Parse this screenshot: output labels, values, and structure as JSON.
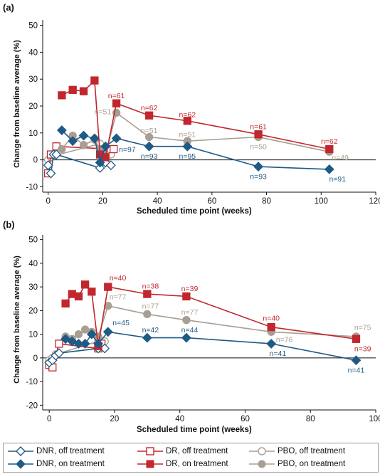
{
  "chart_data": [
    {
      "type": "line",
      "panel_label": "(a)",
      "xlabel": "Scheduled time point (weeks)",
      "ylabel": "Change from baseline average (%)",
      "xlim": [
        -2,
        120
      ],
      "ylim": [
        -12,
        52
      ],
      "xticks": [
        0,
        20,
        40,
        60,
        80,
        100,
        120
      ],
      "yticks": [
        -10,
        0,
        10,
        20,
        30,
        40,
        50
      ],
      "series": [
        {
          "key": "dnr_off",
          "name": "DNR, off treatment",
          "points": [
            [
              0,
              -2
            ],
            [
              1,
              -5
            ],
            [
              2,
              2
            ],
            [
              3,
              2
            ],
            [
              19,
              -3
            ],
            [
              21,
              -1
            ],
            [
              23,
              -2
            ]
          ]
        },
        {
          "key": "dnr_on",
          "name": "DNR, on treatment",
          "points": [
            [
              5,
              11
            ],
            [
              9,
              7
            ],
            [
              13,
              9
            ],
            [
              17,
              8
            ],
            [
              19,
              -1
            ],
            [
              21,
              5
            ],
            [
              25,
              8
            ],
            [
              37,
              5
            ],
            [
              51,
              5
            ],
            [
              77,
              -2.5
            ],
            [
              103,
              -3.5
            ]
          ]
        },
        {
          "key": "dr_off",
          "name": "DR, off treatment",
          "points": [
            [
              0,
              -5
            ],
            [
              1,
              2
            ],
            [
              3,
              5
            ],
            [
              23,
              4
            ],
            [
              24,
              4
            ]
          ]
        },
        {
          "key": "dr_on",
          "name": "DR, on treatment",
          "points": [
            [
              5,
              24
            ],
            [
              9,
              26
            ],
            [
              13,
              25.5
            ],
            [
              17,
              29.5
            ],
            [
              19,
              2
            ],
            [
              21,
              1
            ],
            [
              25,
              21
            ],
            [
              37,
              16.5
            ],
            [
              51,
              14.5
            ],
            [
              77,
              9.5
            ],
            [
              103,
              4
            ]
          ]
        },
        {
          "key": "pbo_off",
          "name": "PBO, off treatment",
          "points": [
            [
              0,
              0
            ],
            [
              1,
              1
            ],
            [
              2,
              1.5
            ],
            [
              19,
              6
            ],
            [
              21,
              4
            ],
            [
              23,
              2
            ]
          ]
        },
        {
          "key": "pbo_on",
          "name": "PBO, on treatment",
          "points": [
            [
              5,
              4
            ],
            [
              9,
              9
            ],
            [
              13,
              5.5
            ],
            [
              17,
              7.5
            ],
            [
              19,
              4
            ],
            [
              21,
              2
            ],
            [
              25,
              17.5
            ],
            [
              37,
              8.5
            ],
            [
              51,
              7
            ],
            [
              77,
              8.5
            ],
            [
              103,
              3
            ]
          ]
        }
      ],
      "annotations": [
        {
          "text": "n=61",
          "series": "dr_on",
          "x": 25,
          "y": 24
        },
        {
          "text": "n=51",
          "series": "pbo_on",
          "x": 20,
          "y": 18
        },
        {
          "text": "n=97",
          "series": "dnr_on",
          "x": 29,
          "y": 4
        },
        {
          "text": "n=62",
          "series": "dr_on",
          "x": 37,
          "y": 19.5
        },
        {
          "text": "n=51",
          "series": "pbo_on",
          "x": 37,
          "y": 11
        },
        {
          "text": "n=93",
          "series": "dnr_on",
          "x": 37,
          "y": 1.5
        },
        {
          "text": "n=62",
          "series": "dr_on",
          "x": 51,
          "y": 17
        },
        {
          "text": "n=51",
          "series": "pbo_on",
          "x": 51,
          "y": 9.5
        },
        {
          "text": "n=95",
          "series": "dnr_on",
          "x": 51,
          "y": 1.5
        },
        {
          "text": "n=61",
          "series": "dr_on",
          "x": 77,
          "y": 12.5
        },
        {
          "text": "n=50",
          "series": "pbo_on",
          "x": 77,
          "y": 5
        },
        {
          "text": "n=93",
          "series": "dnr_on",
          "x": 77,
          "y": -6
        },
        {
          "text": "n=62",
          "series": "dr_on",
          "x": 103,
          "y": 7
        },
        {
          "text": "n=49",
          "series": "pbo_on",
          "x": 107,
          "y": 1
        },
        {
          "text": "n=91",
          "series": "dnr_on",
          "x": 106,
          "y": -7
        }
      ]
    },
    {
      "type": "line",
      "panel_label": "(b)",
      "xlabel": "Scheduled time point (weeks)",
      "ylabel": "Change from baseline average (%)",
      "xlim": [
        -2,
        100
      ],
      "ylim": [
        -22,
        52
      ],
      "xticks": [
        0,
        20,
        40,
        60,
        80,
        100
      ],
      "yticks": [
        -20,
        -10,
        0,
        10,
        20,
        30,
        40,
        50
      ],
      "series": [
        {
          "key": "dnr_off",
          "name": "DNR, off treatment",
          "points": [
            [
              0,
              -2
            ],
            [
              1,
              -1
            ],
            [
              2,
              1
            ],
            [
              3,
              2
            ],
            [
              15,
              4
            ],
            [
              17,
              4
            ]
          ]
        },
        {
          "key": "dnr_on",
          "name": "DNR, on treatment",
          "points": [
            [
              5,
              8
            ],
            [
              7,
              7
            ],
            [
              9,
              6
            ],
            [
              11,
              6
            ],
            [
              13,
              10
            ],
            [
              15,
              6
            ],
            [
              18,
              11
            ],
            [
              30,
              8.5
            ],
            [
              42,
              8.5
            ],
            [
              68,
              6
            ],
            [
              94,
              -1
            ]
          ]
        },
        {
          "key": "dr_off",
          "name": "DR, off treatment",
          "points": [
            [
              0,
              -3
            ],
            [
              1,
              -4
            ],
            [
              3,
              6
            ],
            [
              15,
              4
            ],
            [
              16,
              6
            ]
          ]
        },
        {
          "key": "dr_on",
          "name": "DR, on treatment",
          "points": [
            [
              5,
              23
            ],
            [
              7,
              27
            ],
            [
              9,
              26
            ],
            [
              11,
              31
            ],
            [
              13,
              28
            ],
            [
              15,
              5
            ],
            [
              18,
              30
            ],
            [
              30,
              27
            ],
            [
              42,
              26
            ],
            [
              68,
              13
            ],
            [
              94,
              8
            ]
          ]
        },
        {
          "key": "pbo_off",
          "name": "PBO, off treatment",
          "points": [
            [
              0,
              -1
            ],
            [
              1,
              0
            ],
            [
              2,
              1.5
            ],
            [
              15,
              7
            ],
            [
              17,
              7
            ]
          ]
        },
        {
          "key": "pbo_on",
          "name": "PBO, on treatment",
          "points": [
            [
              5,
              9
            ],
            [
              7,
              8
            ],
            [
              9,
              10
            ],
            [
              11,
              12
            ],
            [
              13,
              11
            ],
            [
              15,
              9
            ],
            [
              18,
              22
            ],
            [
              30,
              18.5
            ],
            [
              42,
              16
            ],
            [
              68,
              11
            ],
            [
              94,
              9
            ]
          ]
        }
      ],
      "annotations": [
        {
          "text": "n=40",
          "series": "dr_on",
          "x": 21,
          "y": 34
        },
        {
          "text": "n=77",
          "series": "pbo_on",
          "x": 21,
          "y": 26
        },
        {
          "text": "n=45",
          "series": "dnr_on",
          "x": 22,
          "y": 15
        },
        {
          "text": "n=38",
          "series": "dr_on",
          "x": 31,
          "y": 30.5
        },
        {
          "text": "n=77",
          "series": "pbo_on",
          "x": 31,
          "y": 22
        },
        {
          "text": "n=42",
          "series": "dnr_on",
          "x": 31,
          "y": 12
        },
        {
          "text": "n=39",
          "series": "dr_on",
          "x": 43,
          "y": 29.5
        },
        {
          "text": "n=77",
          "series": "pbo_on",
          "x": 43,
          "y": 19.5
        },
        {
          "text": "n=44",
          "series": "dnr_on",
          "x": 43,
          "y": 12
        },
        {
          "text": "n=40",
          "series": "dr_on",
          "x": 68,
          "y": 17
        },
        {
          "text": "n=76",
          "series": "pbo_on",
          "x": 72,
          "y": 8
        },
        {
          "text": "n=41",
          "series": "dnr_on",
          "x": 70,
          "y": 2
        },
        {
          "text": "n=75",
          "series": "pbo_on",
          "x": 96,
          "y": 13
        },
        {
          "text": "n=39",
          "series": "dr_on",
          "x": 96,
          "y": 4
        },
        {
          "text": "n=41",
          "series": "dnr_on",
          "x": 94,
          "y": -5
        }
      ]
    }
  ],
  "colors": {
    "dnr": "#1f5a85",
    "dr": "#c1272d",
    "pbo": "#a89e92",
    "axis": "#111111"
  },
  "legend": {
    "items": [
      {
        "key": "dnr_off",
        "label": "DNR, off treatment"
      },
      {
        "key": "dr_off",
        "label": "DR, off treatment"
      },
      {
        "key": "pbo_off",
        "label": "PBO, off treatment"
      },
      {
        "key": "dnr_on",
        "label": "DNR, on treatment"
      },
      {
        "key": "dr_on",
        "label": "DR, on treatment"
      },
      {
        "key": "pbo_on",
        "label": "PBO, on treatment"
      }
    ]
  }
}
